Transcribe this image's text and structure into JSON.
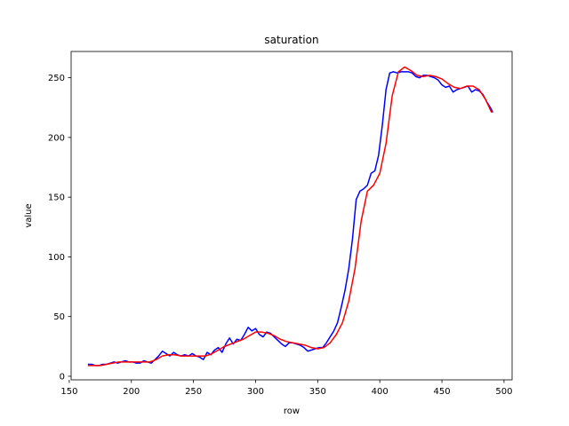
{
  "chart_data": {
    "type": "line",
    "title": "saturation",
    "xlabel": "row",
    "ylabel": "value",
    "xlim": [
      151.5,
      506.5
    ],
    "ylim": [
      -3,
      272
    ],
    "xticks": [
      150,
      200,
      250,
      300,
      350,
      400,
      450,
      500
    ],
    "yticks": [
      0,
      50,
      100,
      150,
      200,
      250
    ],
    "grid": false,
    "colors": {
      "raw": "#0000ff",
      "smoothed": "#ff0000"
    },
    "series": [
      {
        "key": "raw",
        "x": [
          165,
          168,
          171,
          174,
          177,
          180,
          183,
          186,
          189,
          192,
          195,
          198,
          201,
          204,
          207,
          210,
          213,
          216,
          219,
          222,
          225,
          228,
          231,
          234,
          237,
          240,
          243,
          246,
          249,
          252,
          255,
          258,
          261,
          264,
          267,
          270,
          273,
          276,
          279,
          282,
          285,
          288,
          291,
          294,
          297,
          300,
          303,
          306,
          309,
          312,
          315,
          318,
          321,
          324,
          327,
          330,
          333,
          336,
          339,
          342,
          345,
          348,
          351,
          354,
          357,
          360,
          363,
          366,
          369,
          372,
          375,
          378,
          381,
          384,
          387,
          390,
          393,
          396,
          399,
          402,
          405,
          408,
          411,
          414,
          417,
          420,
          423,
          426,
          429,
          432,
          435,
          438,
          441,
          444,
          447,
          450,
          453,
          456,
          459,
          462,
          465,
          468,
          471,
          474,
          477,
          480,
          483,
          486,
          489,
          491
        ],
        "y": [
          10,
          10,
          9,
          9,
          10,
          10,
          11,
          12,
          11,
          12,
          13,
          12,
          12,
          11,
          11,
          13,
          12,
          11,
          14,
          17,
          21,
          19,
          17,
          20,
          18,
          17,
          18,
          17,
          19,
          17,
          16,
          14,
          20,
          18,
          22,
          24,
          20,
          27,
          32,
          27,
          31,
          30,
          35,
          41,
          38,
          40,
          35,
          33,
          37,
          36,
          33,
          30,
          27,
          25,
          28,
          28,
          27,
          26,
          24,
          21,
          22,
          23,
          24,
          24,
          28,
          33,
          38,
          45,
          58,
          72,
          90,
          115,
          148,
          155,
          157,
          160,
          170,
          172,
          185,
          210,
          240,
          254,
          255,
          254,
          255,
          255,
          255,
          254,
          251,
          250,
          252,
          252,
          251,
          250,
          248,
          244,
          242,
          243,
          238,
          240,
          241,
          242,
          243,
          238,
          240,
          239,
          236,
          230,
          225,
          221
        ]
      },
      {
        "key": "smoothed",
        "x": [
          165,
          170,
          175,
          180,
          185,
          190,
          195,
          200,
          205,
          210,
          215,
          220,
          225,
          230,
          235,
          240,
          245,
          250,
          255,
          260,
          265,
          270,
          275,
          280,
          285,
          290,
          295,
          300,
          305,
          310,
          315,
          320,
          325,
          330,
          335,
          340,
          345,
          350,
          355,
          360,
          365,
          370,
          375,
          380,
          385,
          390,
          395,
          400,
          405,
          410,
          415,
          420,
          425,
          430,
          435,
          440,
          445,
          450,
          455,
          460,
          465,
          470,
          475,
          480,
          485,
          490
        ],
        "y": [
          9,
          9,
          9,
          10,
          11,
          12,
          12,
          12,
          12,
          12,
          12,
          14,
          17,
          18,
          18,
          17,
          17,
          17,
          17,
          17,
          19,
          22,
          25,
          27,
          29,
          31,
          34,
          37,
          37,
          36,
          34,
          31,
          29,
          28,
          27,
          26,
          24,
          23,
          24,
          28,
          35,
          45,
          63,
          90,
          130,
          155,
          160,
          170,
          195,
          235,
          255,
          259,
          256,
          252,
          251,
          252,
          251,
          249,
          245,
          242,
          241,
          243,
          243,
          240,
          232,
          221
        ]
      }
    ]
  }
}
